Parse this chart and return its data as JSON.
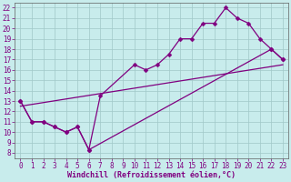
{
  "xlabel": "Windchill (Refroidissement éolien,°C)",
  "xlim": [
    -0.5,
    23.5
  ],
  "ylim": [
    7.5,
    22.5
  ],
  "xticks": [
    0,
    1,
    2,
    3,
    4,
    5,
    6,
    7,
    8,
    9,
    10,
    11,
    12,
    13,
    14,
    15,
    16,
    17,
    18,
    19,
    20,
    21,
    22,
    23
  ],
  "yticks": [
    8,
    9,
    10,
    11,
    12,
    13,
    14,
    15,
    16,
    17,
    18,
    19,
    20,
    21,
    22
  ],
  "bg_color": "#c8ecec",
  "line_color": "#800080",
  "line1_x": [
    0,
    1,
    2,
    3,
    4,
    5,
    6,
    7,
    10,
    11,
    12,
    13,
    14,
    15,
    16,
    17,
    18,
    19,
    20,
    21,
    22,
    23
  ],
  "line1_y": [
    13,
    11,
    11,
    10.5,
    10,
    10.5,
    8.3,
    13.5,
    16.5,
    16.0,
    16.5,
    17.5,
    19.0,
    19.0,
    20.5,
    20.5,
    22,
    21,
    20.5,
    19,
    18.0,
    17
  ],
  "line2_x": [
    0,
    1,
    2,
    3,
    4,
    5,
    6,
    22,
    23
  ],
  "line2_y": [
    13,
    11,
    11,
    10.5,
    10,
    10.5,
    8.3,
    18.0,
    17
  ],
  "line3_x": [
    0,
    23
  ],
  "line3_y": [
    12.5,
    16.5
  ],
  "markersize": 2.5,
  "linewidth": 0.9,
  "grid_color": "#a0c8c8",
  "tick_fontsize": 5.5,
  "xlabel_fontsize": 6.0
}
